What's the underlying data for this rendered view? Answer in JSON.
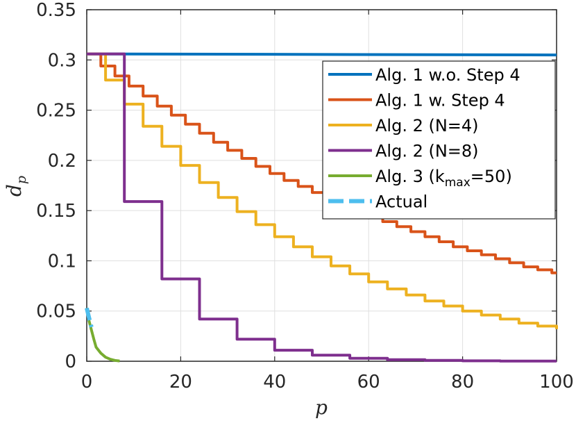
{
  "chart_data": {
    "type": "line",
    "xlabel": "p",
    "ylabel_main": "d",
    "ylabel_sub": "p",
    "xlim": [
      0,
      100
    ],
    "ylim": [
      0,
      0.35
    ],
    "x_ticks": [
      "0",
      "20",
      "40",
      "60",
      "80",
      "100"
    ],
    "y_ticks": [
      "0",
      "0.05",
      "0.1",
      "0.15",
      "0.2",
      "0.25",
      "0.3",
      "0.35"
    ],
    "grid": true,
    "legend_position": "top-right",
    "series": [
      {
        "name": "Alg. 1 w.o. Step 4",
        "color": "#0072BD",
        "style": "solid",
        "x": [
          0,
          100
        ],
        "y": [
          0.306,
          0.305
        ]
      },
      {
        "name": "Alg. 1 w. Step 4",
        "color": "#D95319",
        "style": "step",
        "x": [
          0,
          3,
          6,
          9,
          12,
          15,
          18,
          21,
          24,
          27,
          30,
          33,
          36,
          39,
          42,
          45,
          48,
          51,
          54,
          57,
          60,
          63,
          66,
          69,
          72,
          75,
          78,
          81,
          84,
          87,
          90,
          93,
          96,
          99,
          100
        ],
        "y": [
          0.306,
          0.294,
          0.284,
          0.274,
          0.264,
          0.254,
          0.245,
          0.236,
          0.227,
          0.218,
          0.21,
          0.202,
          0.194,
          0.187,
          0.18,
          0.174,
          0.168,
          0.162,
          0.156,
          0.15,
          0.144,
          0.139,
          0.134,
          0.129,
          0.124,
          0.119,
          0.114,
          0.11,
          0.106,
          0.102,
          0.098,
          0.094,
          0.091,
          0.088,
          0.088
        ]
      },
      {
        "name": "Alg. 2 (N=4)",
        "color": "#EDB120",
        "style": "step",
        "x": [
          0,
          4,
          8,
          12,
          16,
          20,
          24,
          28,
          32,
          36,
          40,
          44,
          48,
          52,
          56,
          60,
          64,
          68,
          72,
          76,
          80,
          84,
          88,
          92,
          96,
          100
        ],
        "y": [
          0.306,
          0.28,
          0.256,
          0.234,
          0.214,
          0.195,
          0.178,
          0.163,
          0.149,
          0.136,
          0.124,
          0.114,
          0.104,
          0.095,
          0.087,
          0.079,
          0.072,
          0.066,
          0.06,
          0.055,
          0.05,
          0.046,
          0.042,
          0.038,
          0.035,
          0.032
        ]
      },
      {
        "name": "Alg. 2 (N=8)",
        "color": "#7E2F8E",
        "style": "step",
        "x": [
          0,
          8,
          16,
          24,
          32,
          40,
          48,
          56,
          64,
          72,
          80,
          88,
          100
        ],
        "y": [
          0.306,
          0.159,
          0.082,
          0.042,
          0.022,
          0.011,
          0.006,
          0.003,
          0.0015,
          0.0008,
          0.0004,
          0.0002,
          0.0002
        ]
      },
      {
        "name": "Alg. 3 (k",
        "name_sub": "max",
        "name_tail": "=50)",
        "color": "#77AC30",
        "style": "solid",
        "x": [
          0,
          0.5,
          1,
          1.5,
          2,
          3,
          4,
          5,
          6,
          7
        ],
        "y": [
          0.053,
          0.04,
          0.031,
          0.022,
          0.014,
          0.008,
          0.004,
          0.002,
          0.0008,
          0.0003
        ]
      },
      {
        "name": "Actual",
        "color": "#4DBEEE",
        "style": "dashed",
        "x": [
          0,
          0.5,
          1
        ],
        "y": [
          0.053,
          0.043,
          0.034
        ]
      }
    ]
  }
}
